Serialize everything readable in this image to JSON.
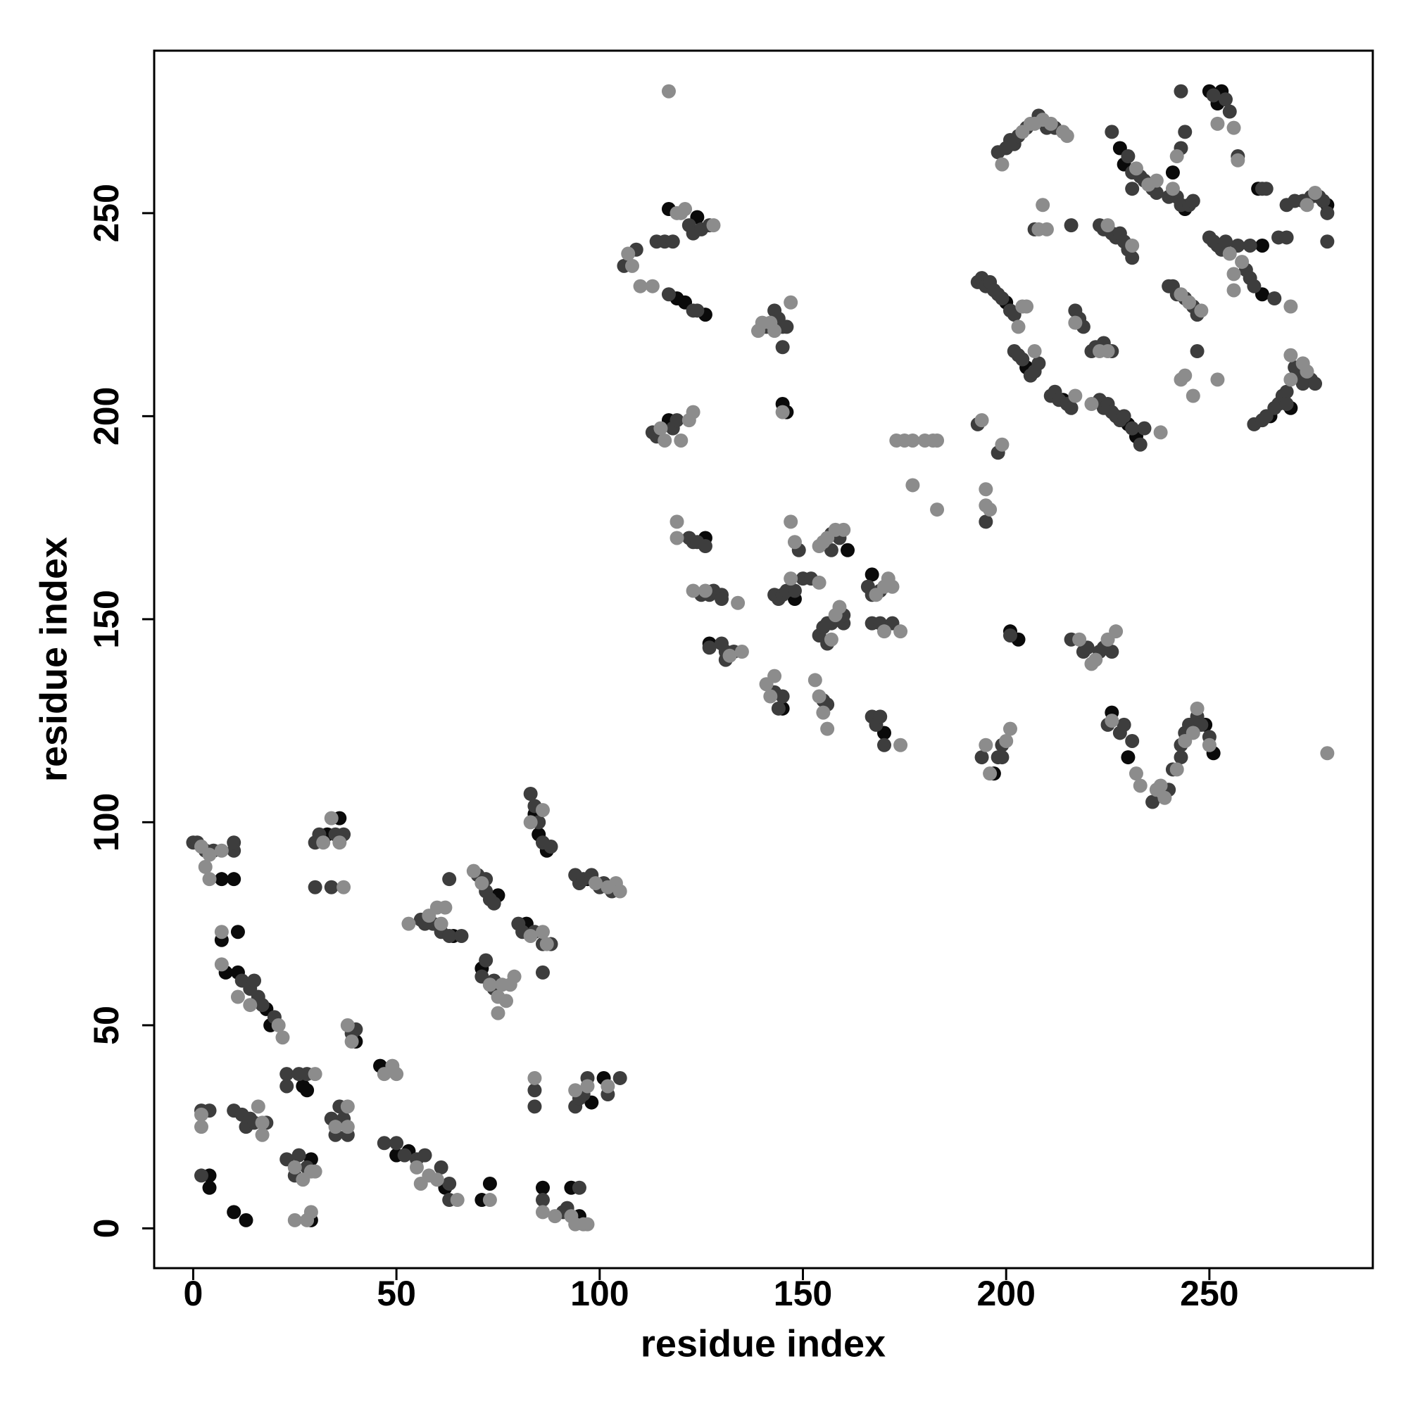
{
  "chart_data": {
    "type": "scatter",
    "xlabel": "residue index",
    "ylabel": "residue index",
    "xlim": [
      -9.6,
      290.2
    ],
    "ylim": [
      -9.8,
      290
    ],
    "xticks": [
      0,
      50,
      100,
      150,
      200,
      250
    ],
    "yticks": [
      0,
      50,
      100,
      150,
      200,
      250
    ],
    "series": [
      {
        "color": "#0a0a0a",
        "x": [
          7,
          10,
          7,
          11,
          8,
          11,
          18,
          19,
          4,
          4,
          10,
          13,
          27,
          28,
          29,
          29,
          33,
          36,
          40,
          46,
          50,
          53,
          62,
          64,
          71,
          73,
          75,
          73,
          71,
          82,
          84,
          85,
          87,
          86,
          95,
          93,
          98,
          101,
          97,
          117,
          119,
          121,
          124,
          126,
          117,
          126,
          127,
          146,
          145,
          145,
          148,
          161,
          167,
          170,
          201,
          203,
          197,
          200,
          205,
          214,
          228,
          229,
          232,
          230,
          230,
          226,
          241,
          244,
          251,
          249,
          250,
          252,
          253,
          262,
          263,
          263,
          265,
          279,
          270
        ],
        "y": [
          86,
          86,
          71,
          73,
          63,
          63,
          54,
          50,
          13,
          10,
          4,
          2,
          35,
          34,
          2,
          17,
          97,
          101,
          46,
          40,
          18,
          19,
          10,
          72,
          64,
          60,
          82,
          11,
          7,
          75,
          102,
          97,
          93,
          10,
          3,
          10,
          31,
          37,
          86,
          251,
          229,
          228,
          249,
          225,
          199,
          170,
          144,
          201,
          203,
          128,
          155,
          167,
          161,
          122,
          147,
          145,
          112,
          228,
          212,
          204,
          266,
          262,
          195,
          198,
          116,
          127,
          260,
          251,
          117,
          124,
          280,
          277,
          280,
          256,
          230,
          242,
          200,
          252,
          202
        ]
      },
      {
        "color": "#3d3d3d",
        "x": [
          0,
          1,
          3,
          5,
          10,
          10,
          12,
          14,
          15,
          16,
          17,
          20,
          2,
          4,
          10,
          12,
          13,
          14,
          15,
          18,
          2,
          23,
          23,
          26,
          28,
          23,
          25,
          26,
          28,
          30,
          31,
          35,
          37,
          30,
          34,
          34,
          36,
          37,
          38,
          35,
          39,
          40,
          47,
          50,
          52,
          55,
          57,
          61,
          63,
          63,
          56,
          57,
          59,
          61,
          63,
          63,
          66,
          70,
          72,
          72,
          73,
          74,
          71,
          72,
          74,
          74,
          80,
          81,
          84,
          86,
          88,
          86,
          83,
          84,
          85,
          86,
          88,
          84,
          84,
          86,
          91,
          92,
          95,
          94,
          95,
          96,
          97,
          102,
          105,
          94,
          95,
          96,
          98,
          100,
          101,
          103,
          106,
          109,
          114,
          116,
          118,
          122,
          123,
          125,
          127,
          117,
          123,
          124,
          113,
          114,
          118,
          119,
          122,
          123,
          124,
          126,
          125,
          127,
          128,
          130,
          130,
          127,
          130,
          131,
          131,
          133,
          141,
          143,
          144,
          145,
          145,
          146,
          143,
          144,
          145,
          143,
          144,
          145,
          146,
          148,
          150,
          152,
          149,
          155,
          156,
          157,
          157,
          159,
          154,
          155,
          156,
          157,
          160,
          160,
          156,
          166,
          167,
          169,
          167,
          169,
          172,
          167,
          168,
          169,
          170,
          193,
          195,
          194,
          198,
          199,
          199,
          198,
          201,
          198,
          200,
          201,
          202,
          203,
          205,
          208,
          210,
          212,
          193,
          194,
          195,
          196,
          197,
          198,
          199,
          201,
          202,
          202,
          203,
          204,
          206,
          207,
          208,
          207,
          211,
          212,
          213,
          215,
          216,
          216,
          217,
          218,
          219,
          216,
          219,
          220,
          223,
          224,
          226,
          221,
          222,
          224,
          226,
          223,
          224,
          225,
          226,
          227,
          228,
          229,
          231,
          233,
          234,
          223,
          224,
          226,
          227,
          228,
          229,
          230,
          231,
          225,
          228,
          229,
          231,
          226,
          230,
          231,
          231,
          233,
          234,
          236,
          237,
          236,
          240,
          241,
          243,
          243,
          244,
          245,
          247,
          248,
          250,
          240,
          241,
          242,
          244,
          246,
          247,
          240,
          242,
          243,
          245,
          246,
          243,
          244,
          243,
          247,
          251,
          254,
          255,
          257,
          250,
          251,
          252,
          253,
          254,
          257,
          259,
          260,
          261,
          260,
          266,
          267,
          269,
          263,
          264,
          269,
          271,
          273,
          275,
          277,
          278,
          279,
          279,
          261,
          263,
          264,
          266,
          267,
          268,
          269,
          271,
          272,
          273,
          275,
          276,
          269
        ],
        "y": [
          95,
          95,
          93,
          93,
          93,
          95,
          61,
          59,
          61,
          57,
          55,
          52,
          29,
          29,
          29,
          28,
          25,
          27,
          26,
          26,
          13,
          38,
          35,
          38,
          38,
          17,
          13,
          18,
          15,
          95,
          97,
          97,
          97,
          84,
          84,
          27,
          30,
          27,
          23,
          23,
          48,
          49,
          21,
          21,
          18,
          17,
          18,
          15,
          11,
          7,
          76,
          75,
          75,
          73,
          86,
          72,
          72,
          87,
          86,
          83,
          81,
          80,
          62,
          66,
          61,
          59,
          75,
          73,
          73,
          70,
          70,
          63,
          107,
          104,
          100,
          95,
          94,
          34,
          30,
          7,
          4,
          5,
          10,
          30,
          32,
          33,
          37,
          33,
          37,
          87,
          85,
          86,
          87,
          84,
          85,
          83,
          237,
          241,
          243,
          243,
          243,
          247,
          245,
          246,
          247,
          230,
          226,
          226,
          196,
          195,
          197,
          199,
          170,
          169,
          169,
          168,
          156,
          156,
          157,
          156,
          155,
          143,
          144,
          142,
          140,
          142,
          222,
          226,
          224,
          222,
          217,
          222,
          132,
          128,
          131,
          156,
          155,
          156,
          157,
          157,
          160,
          160,
          167,
          130,
          129,
          171,
          167,
          170,
          146,
          148,
          144,
          149,
          149,
          151,
          149,
          158,
          156,
          157,
          149,
          149,
          149,
          126,
          124,
          126,
          119,
          198,
          174,
          116,
          116,
          116,
          119,
          191,
          146,
          265,
          266,
          268,
          267,
          269,
          271,
          274,
          271,
          271,
          233,
          234,
          232,
          233,
          231,
          230,
          229,
          226,
          225,
          216,
          215,
          214,
          210,
          211,
          213,
          246,
          205,
          206,
          204,
          203,
          202,
          247,
          226,
          224,
          222,
          145,
          142,
          143,
          142,
          143,
          142,
          216,
          217,
          218,
          216,
          204,
          202,
          203,
          201,
          200,
          199,
          200,
          197,
          193,
          197,
          247,
          246,
          245,
          244,
          245,
          243,
          241,
          239,
          124,
          122,
          124,
          120,
          270,
          264,
          260,
          256,
          259,
          258,
          256,
          255,
          105,
          108,
          113,
          116,
          119,
          122,
          124,
          126,
          124,
          121,
          232,
          232,
          230,
          229,
          227,
          225,
          254,
          254,
          252,
          252,
          253,
          266,
          270,
          280,
          216,
          279,
          278,
          275,
          264,
          244,
          243,
          242,
          241,
          243,
          242,
          236,
          234,
          232,
          242,
          229,
          244,
          244,
          256,
          256,
          252,
          253,
          253,
          254,
          254,
          253,
          250,
          243,
          198,
          199,
          200,
          202,
          203,
          205,
          206,
          212,
          210,
          208,
          209,
          208,
          203
        ]
      },
      {
        "color": "#8c8c8c",
        "x": [
          2,
          4,
          7,
          3,
          4,
          7,
          7,
          11,
          14,
          21,
          22,
          2,
          2,
          16,
          17,
          17,
          25,
          27,
          29,
          30,
          25,
          28,
          29,
          30,
          32,
          34,
          36,
          37,
          35,
          38,
          38,
          38,
          39,
          47,
          49,
          50,
          55,
          56,
          58,
          60,
          65,
          53,
          58,
          60,
          61,
          62,
          69,
          71,
          73,
          75,
          75,
          76,
          77,
          78,
          79,
          73,
          83,
          86,
          87,
          83,
          86,
          84,
          86,
          89,
          93,
          94,
          96,
          97,
          94,
          97,
          102,
          99,
          102,
          104,
          105,
          117,
          107,
          108,
          110,
          113,
          119,
          120,
          121,
          128,
          115,
          116,
          120,
          122,
          123,
          119,
          119,
          123,
          126,
          134,
          132,
          135,
          139,
          140,
          142,
          143,
          147,
          145,
          141,
          142,
          143,
          147,
          147,
          148,
          154,
          153,
          154,
          155,
          156,
          154,
          155,
          156,
          158,
          160,
          158,
          159,
          157,
          168,
          170,
          171,
          172,
          170,
          174,
          174,
          173,
          175,
          177,
          177,
          180,
          182,
          183,
          183,
          194,
          195,
          195,
          196,
          195,
          196,
          200,
          201,
          199,
          199,
          204,
          206,
          207,
          209,
          211,
          214,
          215,
          203,
          204,
          205,
          207,
          208,
          209,
          210,
          217,
          217,
          218,
          221,
          222,
          225,
          227,
          223,
          225,
          221,
          225,
          231,
          226,
          232,
          233,
          232,
          235,
          237,
          238,
          237,
          238,
          239,
          242,
          244,
          246,
          247,
          250,
          243,
          245,
          248,
          241,
          242,
          243,
          244,
          246,
          252,
          252,
          256,
          257,
          255,
          256,
          256,
          258,
          270,
          274,
          276,
          270,
          274,
          270,
          273,
          279
        ],
        "y": [
          94,
          92,
          93,
          89,
          86,
          73,
          65,
          57,
          55,
          50,
          47,
          28,
          25,
          30,
          26,
          23,
          15,
          12,
          14,
          14,
          2,
          2,
          4,
          38,
          95,
          101,
          95,
          84,
          25,
          30,
          25,
          50,
          46,
          38,
          40,
          38,
          15,
          11,
          13,
          12,
          7,
          75,
          77,
          79,
          75,
          79,
          88,
          85,
          60,
          53,
          57,
          60,
          56,
          60,
          62,
          7,
          72,
          73,
          70,
          100,
          103,
          37,
          4,
          3,
          3,
          1,
          1,
          1,
          34,
          35,
          35,
          85,
          84,
          85,
          83,
          280,
          240,
          237,
          232,
          232,
          250,
          250,
          251,
          247,
          197,
          194,
          194,
          199,
          201,
          174,
          170,
          157,
          157,
          154,
          141,
          142,
          221,
          223,
          223,
          221,
          228,
          201,
          134,
          131,
          136,
          174,
          160,
          169,
          159,
          135,
          131,
          127,
          123,
          168,
          169,
          170,
          172,
          172,
          151,
          153,
          145,
          156,
          158,
          160,
          158,
          147,
          147,
          119,
          194,
          194,
          194,
          183,
          194,
          194,
          194,
          177,
          199,
          178,
          182,
          177,
          119,
          112,
          120,
          123,
          193,
          262,
          270,
          272,
          272,
          273,
          272,
          270,
          269,
          222,
          227,
          227,
          216,
          246,
          252,
          246,
          205,
          223,
          145,
          139,
          140,
          145,
          147,
          216,
          216,
          203,
          247,
          242,
          125,
          112,
          109,
          261,
          257,
          258,
          196,
          108,
          109,
          106,
          113,
          120,
          122,
          128,
          119,
          230,
          228,
          226,
          256,
          264,
          209,
          210,
          205,
          209,
          272,
          271,
          263,
          240,
          235,
          231,
          238,
          227,
          252,
          255,
          209,
          211,
          215,
          213,
          117
        ]
      }
    ]
  }
}
